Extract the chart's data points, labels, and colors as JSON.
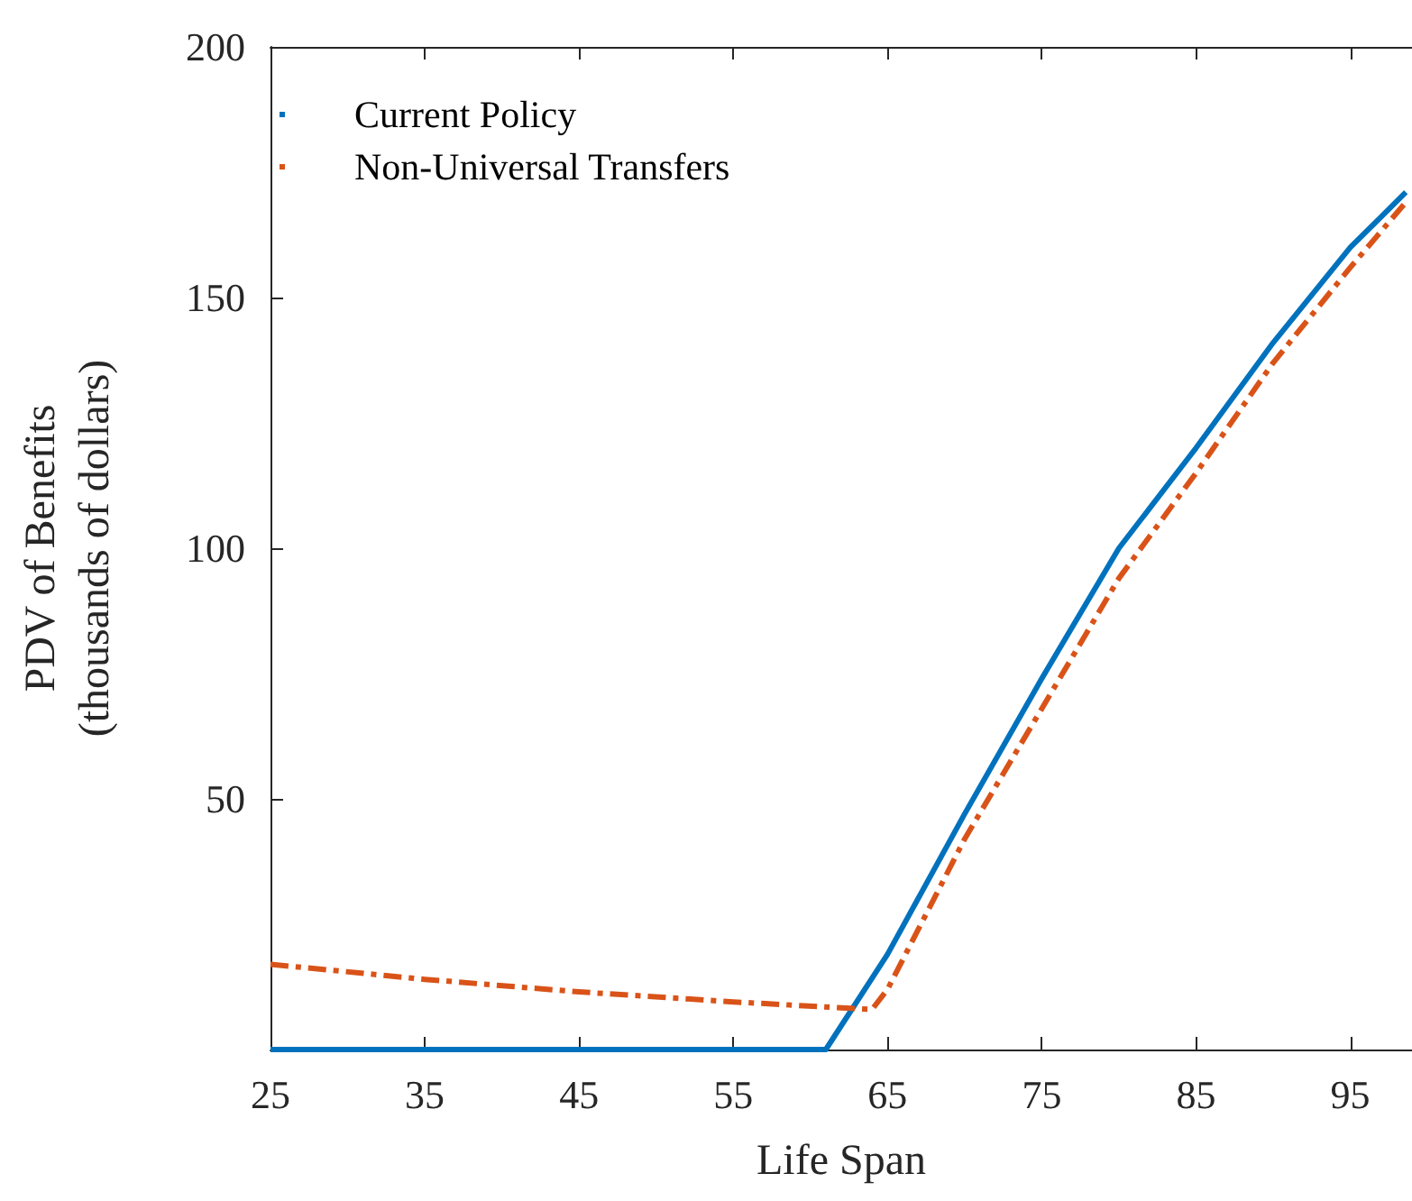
{
  "chart_data": {
    "type": "line",
    "xlabel": "Life Span",
    "ylabel": "PDV of Benefits\n(thousands of dollars)",
    "xlim": [
      25,
      99
    ],
    "xticks": [
      25,
      35,
      45,
      55,
      65,
      75,
      85,
      95
    ],
    "ylim": [
      0,
      200
    ],
    "yticks": [
      50,
      100,
      150,
      200
    ],
    "grid": false,
    "legend": "top left",
    "marker": "none",
    "series": [
      {
        "name": "Current Policy",
        "color": "#0072bd",
        "line_style": "solid",
        "x": [
          25,
          61,
          65,
          70,
          75,
          80,
          85,
          90,
          95,
          98.6
        ],
        "values": [
          0,
          0,
          19,
          47,
          74,
          100,
          120,
          141,
          160,
          171
        ]
      },
      {
        "name": "Non-Universal Transfers",
        "color": "#d95319",
        "line_style": "dashdot",
        "x": [
          25,
          35,
          45,
          55,
          64,
          65,
          70,
          75,
          80,
          85,
          90,
          95,
          98.6
        ],
        "values": [
          17,
          14,
          11.5,
          9.5,
          8,
          12,
          42,
          68,
          94,
          115,
          137,
          156,
          169
        ]
      }
    ]
  }
}
